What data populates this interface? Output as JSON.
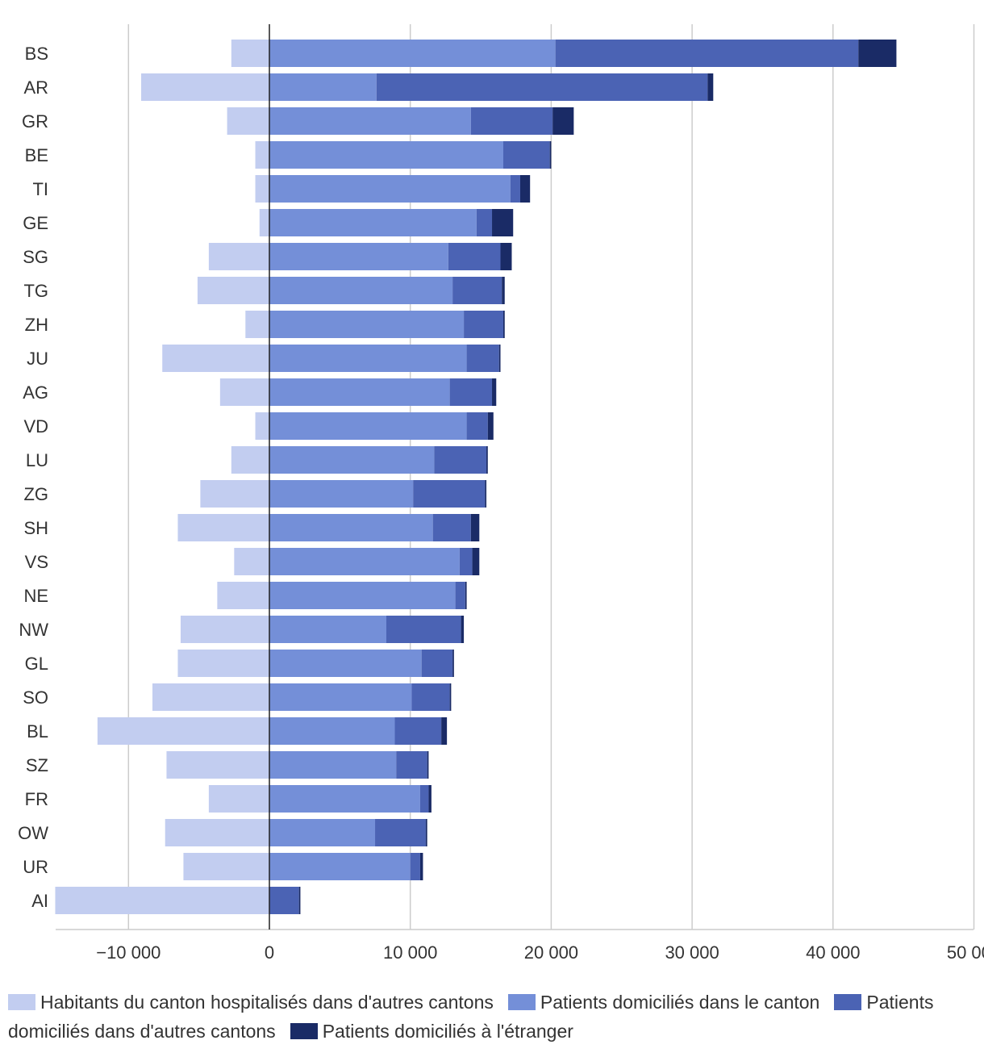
{
  "chart_data": {
    "type": "bar",
    "orientation": "horizontal",
    "stacked": true,
    "title": "",
    "xlabel": "",
    "ylabel": "",
    "xlim": [
      -15400,
      50000
    ],
    "xticks": [
      -10000,
      0,
      10000,
      20000,
      30000,
      40000,
      50000
    ],
    "xtick_labels": [
      "−10 000",
      "0",
      "10 000",
      "20 000",
      "30 000",
      "40 000",
      "50 000"
    ],
    "grid": true,
    "legend_position": "bottom",
    "categories": [
      "BS",
      "AR",
      "GR",
      "BE",
      "TI",
      "GE",
      "SG",
      "TG",
      "ZH",
      "JU",
      "AG",
      "VD",
      "LU",
      "ZG",
      "SH",
      "VS",
      "NE",
      "NW",
      "GL",
      "SO",
      "BL",
      "SZ",
      "FR",
      "OW",
      "UR",
      "AI"
    ],
    "series": [
      {
        "name": "Habitants du canton hospitalisés dans d'autres cantons",
        "color": "#c2cdf0",
        "values": [
          -2700,
          -9100,
          -3000,
          -1000,
          -1000,
          -700,
          -4300,
          -5100,
          -1700,
          -7600,
          -3500,
          -1000,
          -2700,
          -4900,
          -6500,
          -2500,
          -3700,
          -6300,
          -6500,
          -8300,
          -12200,
          -7300,
          -4300,
          -7400,
          -6100,
          -15200
        ]
      },
      {
        "name": "Patients domiciliés dans le canton",
        "color": "#748fd8",
        "values": [
          20300,
          7600,
          14300,
          16600,
          17100,
          14700,
          12700,
          13000,
          13800,
          14000,
          12800,
          14000,
          11700,
          10200,
          11600,
          13500,
          13200,
          8300,
          10800,
          10100,
          8900,
          9000,
          10700,
          7500,
          10000,
          0
        ]
      },
      {
        "name": "Patients domiciliés dans d'autres cantons",
        "color": "#4b63b4",
        "values": [
          21500,
          23500,
          5800,
          3300,
          700,
          1100,
          3700,
          3500,
          2800,
          2300,
          3000,
          1500,
          3700,
          5100,
          2700,
          900,
          700,
          5300,
          2200,
          2700,
          3300,
          2200,
          600,
          3600,
          700,
          2100
        ]
      },
      {
        "name": "Patients domiciliés à l'étranger",
        "color": "#1a2b66",
        "values": [
          2700,
          400,
          1500,
          100,
          700,
          1500,
          800,
          200,
          100,
          100,
          300,
          400,
          100,
          100,
          600,
          500,
          100,
          200,
          100,
          100,
          400,
          100,
          200,
          100,
          200,
          100
        ]
      }
    ]
  }
}
